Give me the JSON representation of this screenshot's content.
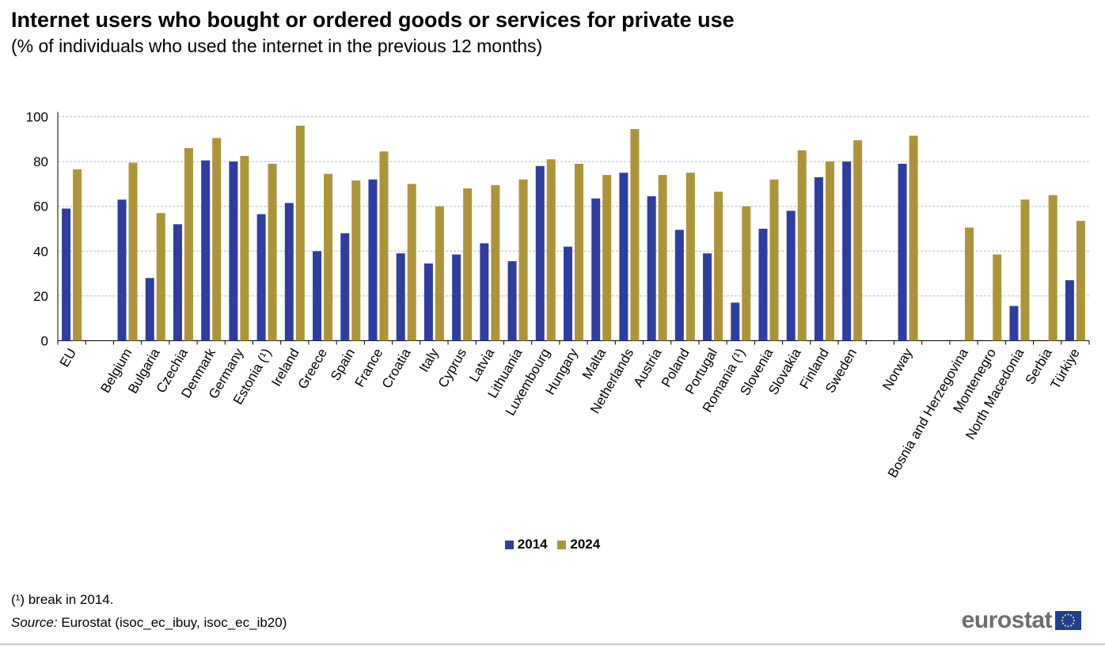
{
  "title": "Internet users who bought or ordered goods or services for private use",
  "subtitle": "(% of individuals who used the internet in the previous 12 months)",
  "footnote": "(¹) break in 2014.",
  "source": {
    "label": "Source:",
    "text": " Eurostat (isoc_ec_ibuy, isoc_ec_ib20)"
  },
  "logo": {
    "text": "eurostat",
    "icon": "eu-flag-icon"
  },
  "colors": {
    "series_2014": "#2e3ea0",
    "series_2024": "#ad9439",
    "grid": "#bfbfbf",
    "axis": "#000000"
  },
  "chart_data": {
    "type": "bar",
    "title": "Internet users who bought or ordered goods or services for private use",
    "subtitle": "(% of individuals who used the internet in the previous 12 months)",
    "xlabel": "",
    "ylabel": "",
    "ylim": [
      0,
      100
    ],
    "yticks": [
      0,
      20,
      40,
      60,
      80,
      100
    ],
    "grid": true,
    "legend_position": "bottom",
    "categories": [
      "EU",
      "Belgium",
      "Bulgaria",
      "Czechia",
      "Denmark",
      "Germany",
      "Estonia (¹)",
      "Ireland",
      "Greece",
      "Spain",
      "France",
      "Croatia",
      "Italy",
      "Cyprus",
      "Latvia",
      "Lithuania",
      "Luxembourg",
      "Hungary",
      "Malta",
      "Netherlands",
      "Austria",
      "Poland",
      "Portugal",
      "Romania (¹)",
      "Slovenia",
      "Slovakia",
      "Finland",
      "Sweden",
      "Norway",
      "Bosnia and Herzegovina",
      "Montenegro",
      "North Macedonia",
      "Serbia",
      "Türkiye"
    ],
    "series": [
      {
        "name": "2014",
        "values": [
          59,
          63,
          28,
          52,
          80.5,
          80,
          56.5,
          61.5,
          40,
          48,
          72,
          39,
          34.5,
          38.5,
          43.5,
          35.5,
          78,
          42,
          63.5,
          75,
          64.5,
          49.5,
          39,
          17,
          50,
          58,
          73,
          80,
          79,
          null,
          null,
          15.5,
          null,
          27
        ]
      },
      {
        "name": "2024",
        "values": [
          76.5,
          79.5,
          57,
          86,
          90.5,
          82.5,
          79,
          96,
          74.5,
          71.5,
          84.5,
          70,
          60,
          68,
          69.5,
          72,
          81,
          79,
          74,
          94.5,
          74,
          75,
          66.5,
          60,
          72,
          85,
          80,
          89.5,
          91.5,
          50.5,
          38.5,
          63,
          65,
          53.5
        ]
      }
    ]
  }
}
